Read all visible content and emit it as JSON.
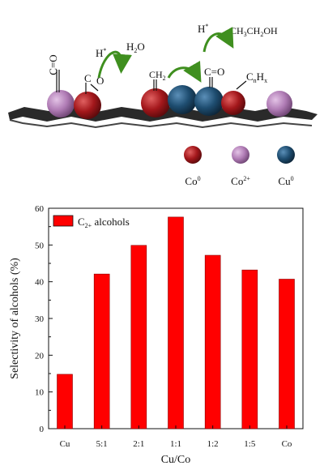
{
  "schematic": {
    "labels": {
      "co_left_C": "C",
      "co_left_O": "O",
      "co2_C": "C",
      "co2_O": "O",
      "ch2": "CH",
      "ch2_sub": "2",
      "co_right": "C=O",
      "cnhx_C": "C",
      "cnhx_n": "n",
      "cnhx_H": "H",
      "cnhx_x": "x",
      "h_left": "H",
      "h_left_sup": "*",
      "h2o_H": "H",
      "h2o_sub": "2",
      "h2o_O": "O",
      "h_right": "H",
      "h_right_sup": "*",
      "ethanol_a": "CH",
      "ethanol_a_sub": "3",
      "ethanol_b": "CH",
      "ethanol_b_sub": "2",
      "ethanol_c": "OH"
    },
    "legend": [
      {
        "label": "Co",
        "sup": "0",
        "color": "#b0161b"
      },
      {
        "label": "Co",
        "sup": "2+",
        "color": "#b27cb7"
      },
      {
        "label": "Cu",
        "sup": "0",
        "color": "#1f4e72"
      }
    ]
  },
  "chart_data": {
    "type": "bar",
    "categories": [
      "Cu",
      "5:1",
      "2:1",
      "1:1",
      "1:2",
      "1:5",
      "Co"
    ],
    "values": [
      14.8,
      42.1,
      49.9,
      57.6,
      47.2,
      43.2,
      40.7
    ],
    "ylim": [
      0,
      60
    ],
    "yticks": [
      "0",
      "10",
      "20",
      "30",
      "40",
      "50",
      "60"
    ],
    "xlabel": "Cu/Co",
    "ylabel": "Selectivity of alcohols (%)",
    "legend": {
      "label": "C",
      "sub": "2+",
      "rest": " alcohols",
      "position": "top-left"
    },
    "bar_color": "#ff0000",
    "grid": false
  }
}
